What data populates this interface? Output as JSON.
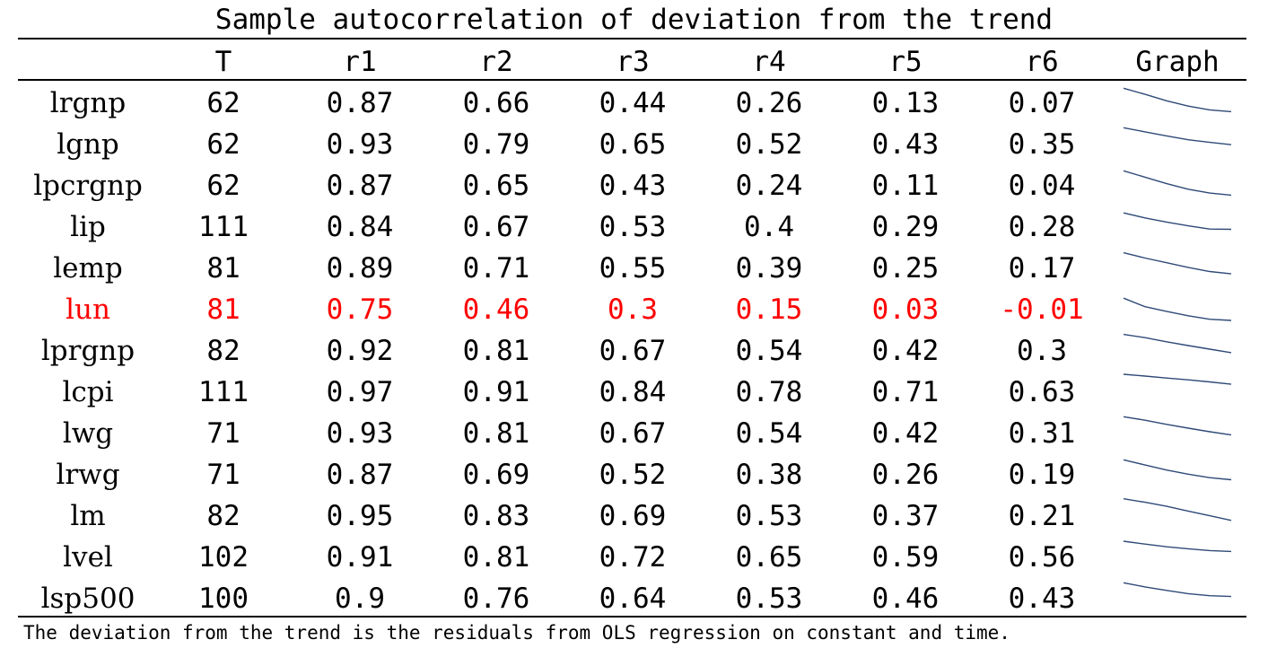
{
  "chart_data": {
    "type": "table",
    "title": "Sample autocorrelation of deviation from the trend",
    "columns": [
      "",
      "T",
      "r1",
      "r2",
      "r3",
      "r4",
      "r5",
      "r6",
      "Graph"
    ],
    "rows": [
      {
        "name": "lrgnp",
        "T": "62",
        "values": [
          "0.87",
          "0.66",
          "0.44",
          "0.26",
          "0.13",
          "0.07"
        ]
      },
      {
        "name": "lgnp",
        "T": "62",
        "values": [
          "0.93",
          "0.79",
          "0.65",
          "0.52",
          "0.43",
          "0.35"
        ]
      },
      {
        "name": "lpcrgnp",
        "T": "62",
        "values": [
          "0.87",
          "0.65",
          "0.43",
          "0.24",
          "0.11",
          "0.04"
        ]
      },
      {
        "name": "lip",
        "T": "111",
        "values": [
          "0.84",
          "0.67",
          "0.53",
          "0.4",
          "0.29",
          "0.28"
        ]
      },
      {
        "name": "lemp",
        "T": "81",
        "values": [
          "0.89",
          "0.71",
          "0.55",
          "0.39",
          "0.25",
          "0.17"
        ]
      },
      {
        "name": "lun",
        "T": "81",
        "values": [
          "0.75",
          "0.46",
          "0.3",
          "0.15",
          "0.03",
          "-0.01"
        ],
        "highlight": true
      },
      {
        "name": "lprgnp",
        "T": "82",
        "values": [
          "0.92",
          "0.81",
          "0.67",
          "0.54",
          "0.42",
          "0.3"
        ]
      },
      {
        "name": "lcpi",
        "T": "111",
        "values": [
          "0.97",
          "0.91",
          "0.84",
          "0.78",
          "0.71",
          "0.63"
        ]
      },
      {
        "name": "lwg",
        "T": "71",
        "values": [
          "0.93",
          "0.81",
          "0.67",
          "0.54",
          "0.42",
          "0.31"
        ]
      },
      {
        "name": "lrwg",
        "T": "71",
        "values": [
          "0.87",
          "0.69",
          "0.52",
          "0.38",
          "0.26",
          "0.19"
        ]
      },
      {
        "name": "lm",
        "T": "82",
        "values": [
          "0.95",
          "0.83",
          "0.69",
          "0.53",
          "0.37",
          "0.21"
        ]
      },
      {
        "name": "lvel",
        "T": "102",
        "values": [
          "0.91",
          "0.81",
          "0.72",
          "0.65",
          "0.59",
          "0.56"
        ]
      },
      {
        "name": "lsp500",
        "T": "100",
        "values": [
          "0.9",
          "0.76",
          "0.64",
          "0.53",
          "0.46",
          "0.43"
        ]
      }
    ],
    "sparkline_ylim": [
      -0.01,
      0.97
    ],
    "note": "The deviation from the trend is the residuals from OLS regression on constant and time."
  },
  "colors": {
    "text": "#000000",
    "highlight": "#ff0000",
    "sparkline": "#2f4a78",
    "rule": "#000000"
  }
}
